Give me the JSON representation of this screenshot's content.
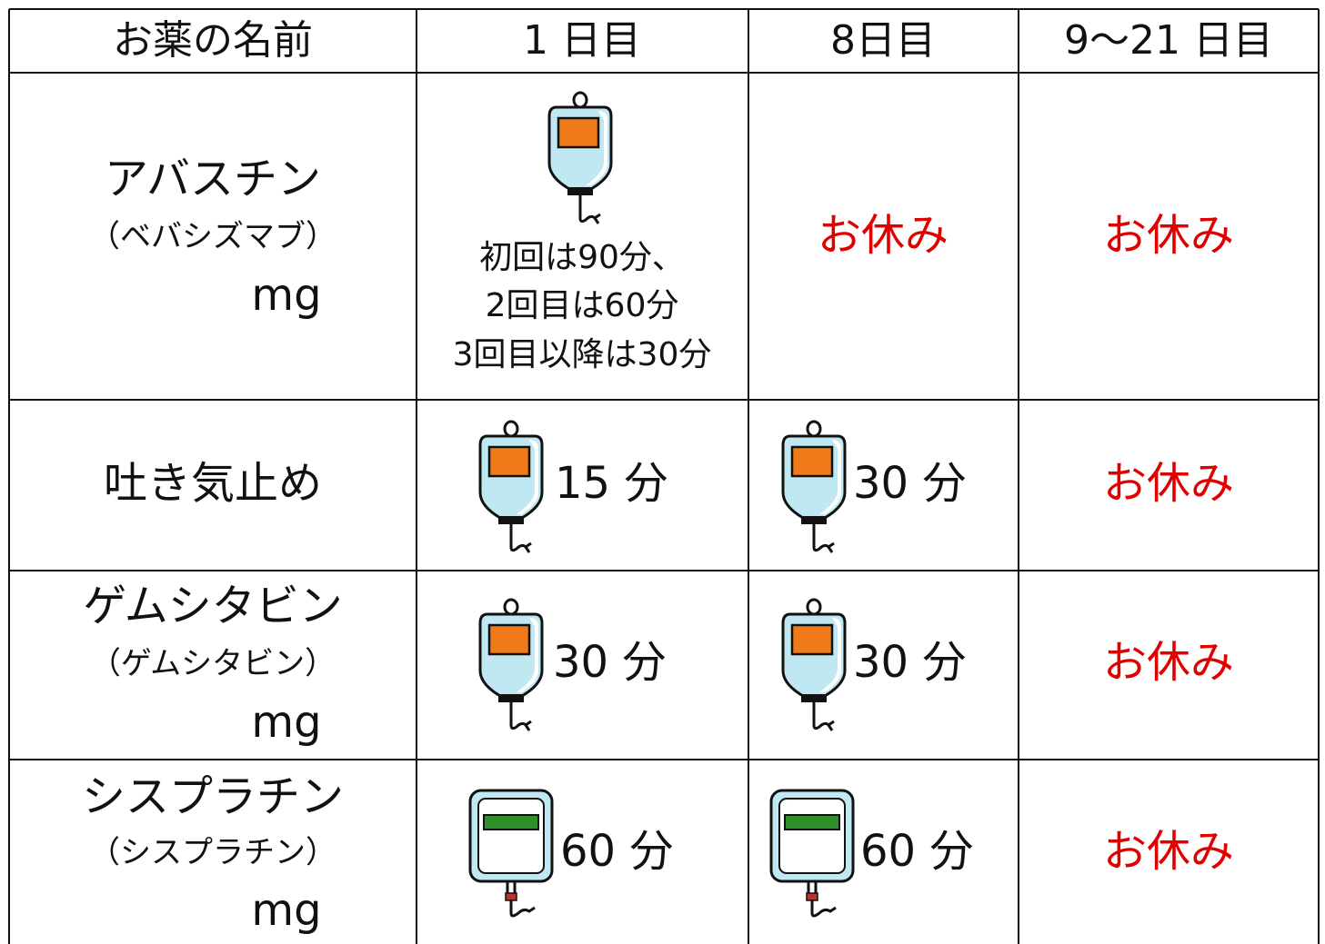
{
  "table": {
    "header": [
      "お薬の名前",
      "1 日目",
      "8日目",
      "9〜21 日目"
    ],
    "rows": [
      [
        [
          "アバスチン",
          "（ベバシズマブ）",
          "mg"
        ],
        [
          "初回は90分、",
          "2回目は60分",
          "3回目以降は30分"
        ],
        [
          "お休み"
        ],
        [
          "お休み"
        ]
      ],
      [
        [
          "吐き気止め"
        ],
        [
          "15 分"
        ],
        [
          "30 分"
        ],
        [
          "お休み"
        ]
      ],
      [
        [
          "ゲムシタビン",
          "（ゲムシタビン）",
          "mg"
        ],
        [
          "30 分"
        ],
        [
          "30 分"
        ],
        [
          "お休み"
        ]
      ],
      [
        [
          "シスプラチン",
          "（シスプラチン）",
          "mg"
        ],
        [
          "60 分"
        ],
        [
          "60 分"
        ],
        [
          "お休み"
        ]
      ]
    ]
  }
}
